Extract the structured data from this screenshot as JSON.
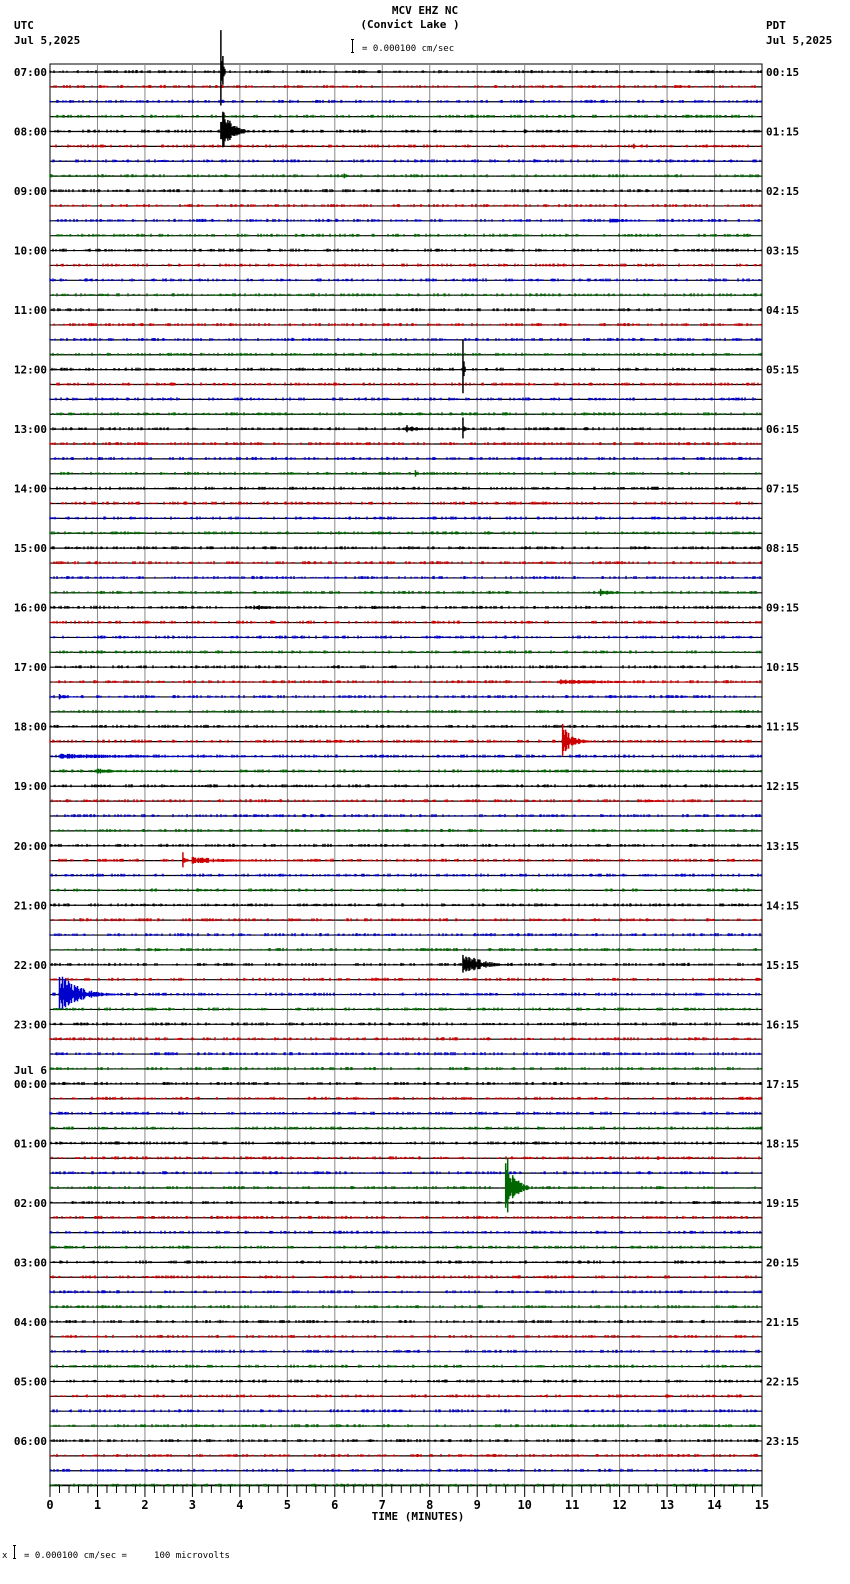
{
  "header": {
    "station": "MCV EHZ NC",
    "location": "(Convict Lake )",
    "left_tz": "UTC",
    "left_date": "Jul 5,2025",
    "right_tz": "PDT",
    "right_date": "Jul 5,2025",
    "scale_label": "= 0.000100 cm/sec"
  },
  "footer": {
    "scale_note": "= 0.000100 cm/sec =     100 microvolts",
    "scale_prefix": "x"
  },
  "chart_data": {
    "type": "seismogram",
    "title": "MCV EHZ NC (Convict Lake )",
    "xlabel": "TIME (MINUTES)",
    "x_ticks": [
      0,
      1,
      2,
      3,
      4,
      5,
      6,
      7,
      8,
      9,
      10,
      11,
      12,
      13,
      14,
      15
    ],
    "xlim": [
      0,
      15
    ],
    "traces_per_hour": 4,
    "trace_colors": [
      "#000000",
      "#cc0000",
      "#0000cc",
      "#006600"
    ],
    "left_labels": [
      "07:00",
      "08:00",
      "09:00",
      "10:00",
      "11:00",
      "12:00",
      "13:00",
      "14:00",
      "15:00",
      "16:00",
      "17:00",
      "18:00",
      "19:00",
      "20:00",
      "21:00",
      "22:00",
      "23:00",
      "00:00",
      "01:00",
      "02:00",
      "03:00",
      "04:00",
      "05:00",
      "06:00"
    ],
    "date_change_label": {
      "text": "Jul 6",
      "before_index": 17
    },
    "right_labels": [
      "00:15",
      "01:15",
      "02:15",
      "03:15",
      "04:15",
      "05:15",
      "06:15",
      "07:15",
      "08:15",
      "09:15",
      "10:15",
      "11:15",
      "12:15",
      "13:15",
      "14:15",
      "15:15",
      "16:15",
      "17:15",
      "18:15",
      "19:15",
      "20:15",
      "21:15",
      "22:15",
      "23:15"
    ],
    "events": [
      {
        "trace": 0,
        "minute": 3.6,
        "amp": 60,
        "dur": 0.1
      },
      {
        "trace": 4,
        "minute": 3.6,
        "amp": 28,
        "dur": 0.6
      },
      {
        "trace": 4,
        "minute": 10.0,
        "amp": 4,
        "dur": 0.1
      },
      {
        "trace": 5,
        "minute": 12.3,
        "amp": 3,
        "dur": 0.1
      },
      {
        "trace": 7,
        "minute": 6.2,
        "amp": 3,
        "dur": 0.1
      },
      {
        "trace": 10,
        "minute": 11.8,
        "amp": 3,
        "dur": 1.0
      },
      {
        "trace": 20,
        "minute": 8.7,
        "amp": 55,
        "dur": 0.05
      },
      {
        "trace": 24,
        "minute": 7.5,
        "amp": 5,
        "dur": 0.8
      },
      {
        "trace": 24,
        "minute": 8.7,
        "amp": 14,
        "dur": 0.1
      },
      {
        "trace": 27,
        "minute": 7.7,
        "amp": 4,
        "dur": 0.1
      },
      {
        "trace": 35,
        "minute": 11.6,
        "amp": 4,
        "dur": 1.0
      },
      {
        "trace": 36,
        "minute": 4.3,
        "amp": 3,
        "dur": 2.0
      },
      {
        "trace": 36,
        "minute": 6.8,
        "amp": 3,
        "dur": 0.4
      },
      {
        "trace": 41,
        "minute": 10.7,
        "amp": 3,
        "dur": 4.3
      },
      {
        "trace": 42,
        "minute": 0.2,
        "amp": 3,
        "dur": 0.6
      },
      {
        "trace": 45,
        "minute": 10.8,
        "amp": 18,
        "dur": 0.6
      },
      {
        "trace": 46,
        "minute": 0.2,
        "amp": 3,
        "dur": 6.0
      },
      {
        "trace": 47,
        "minute": 1.0,
        "amp": 3,
        "dur": 1.5
      },
      {
        "trace": 49,
        "minute": 12.5,
        "amp": 2,
        "dur": 1.5
      },
      {
        "trace": 53,
        "minute": 2.8,
        "amp": 10,
        "dur": 0.1
      },
      {
        "trace": 53,
        "minute": 3.0,
        "amp": 4,
        "dur": 2.5
      },
      {
        "trace": 59,
        "minute": 2.2,
        "amp": 2,
        "dur": 0.8
      },
      {
        "trace": 60,
        "minute": 8.7,
        "amp": 16,
        "dur": 1.0
      },
      {
        "trace": 62,
        "minute": 0.2,
        "amp": 22,
        "dur": 1.2
      },
      {
        "trace": 73,
        "minute": 12.8,
        "amp": 5,
        "dur": 0.1
      },
      {
        "trace": 75,
        "minute": 9.6,
        "amp": 40,
        "dur": 0.5
      },
      {
        "trace": 85,
        "minute": 13.2,
        "amp": 4,
        "dur": 0.1
      },
      {
        "trace": 89,
        "minute": 13.0,
        "amp": 4,
        "dur": 0.1
      }
    ]
  }
}
